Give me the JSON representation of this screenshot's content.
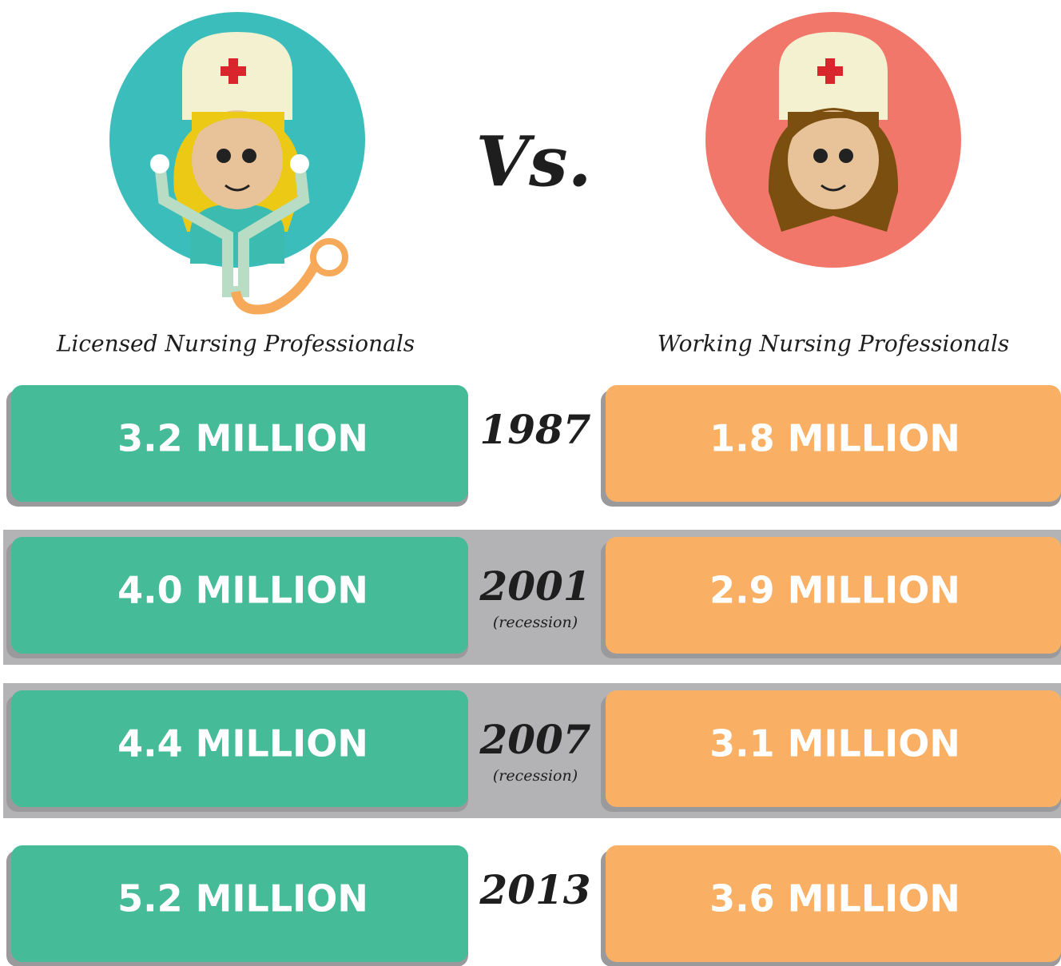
{
  "header": {
    "vs": "Vs.",
    "left_label": "Licensed Nursing Professionals",
    "right_label": "Working Nursing Professionals"
  },
  "rows": [
    {
      "year": "1987",
      "licensed": "3.2 MILLION",
      "working": "1.8 MILLION"
    },
    {
      "year": "2001",
      "note": "(recession)",
      "licensed": "4.0 MILLION",
      "working": "2.9 MILLION"
    },
    {
      "year": "2007",
      "note": "(recession)",
      "licensed": "4.4 MILLION",
      "working": "3.1 MILLION"
    },
    {
      "year": "2013",
      "licensed": "5.2 MILLION",
      "working": "3.6 MILLION"
    }
  ]
}
